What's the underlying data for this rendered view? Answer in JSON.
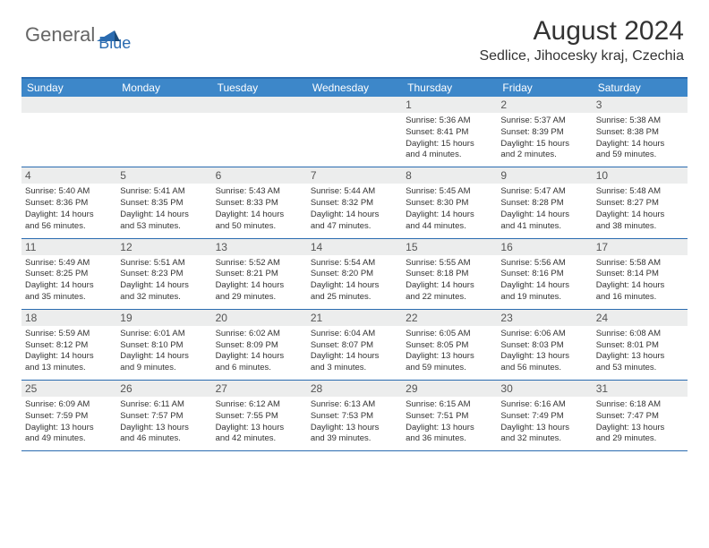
{
  "logo": {
    "part1": "General",
    "part2": "Blue"
  },
  "title": "August 2024",
  "location": "Sedlice, Jihocesky kraj, Czechia",
  "colors": {
    "header_bar": "#3d87c9",
    "border": "#2a6bb0",
    "daynum_bg": "#eceded",
    "text": "#333333",
    "logo_gray": "#666666",
    "logo_blue": "#2a6bb0",
    "background": "#ffffff"
  },
  "weekdays": [
    "Sunday",
    "Monday",
    "Tuesday",
    "Wednesday",
    "Thursday",
    "Friday",
    "Saturday"
  ],
  "weeks": [
    [
      null,
      null,
      null,
      null,
      {
        "n": "1",
        "sr": "Sunrise: 5:36 AM",
        "ss": "Sunset: 8:41 PM",
        "d1": "Daylight: 15 hours",
        "d2": "and 4 minutes."
      },
      {
        "n": "2",
        "sr": "Sunrise: 5:37 AM",
        "ss": "Sunset: 8:39 PM",
        "d1": "Daylight: 15 hours",
        "d2": "and 2 minutes."
      },
      {
        "n": "3",
        "sr": "Sunrise: 5:38 AM",
        "ss": "Sunset: 8:38 PM",
        "d1": "Daylight: 14 hours",
        "d2": "and 59 minutes."
      }
    ],
    [
      {
        "n": "4",
        "sr": "Sunrise: 5:40 AM",
        "ss": "Sunset: 8:36 PM",
        "d1": "Daylight: 14 hours",
        "d2": "and 56 minutes."
      },
      {
        "n": "5",
        "sr": "Sunrise: 5:41 AM",
        "ss": "Sunset: 8:35 PM",
        "d1": "Daylight: 14 hours",
        "d2": "and 53 minutes."
      },
      {
        "n": "6",
        "sr": "Sunrise: 5:43 AM",
        "ss": "Sunset: 8:33 PM",
        "d1": "Daylight: 14 hours",
        "d2": "and 50 minutes."
      },
      {
        "n": "7",
        "sr": "Sunrise: 5:44 AM",
        "ss": "Sunset: 8:32 PM",
        "d1": "Daylight: 14 hours",
        "d2": "and 47 minutes."
      },
      {
        "n": "8",
        "sr": "Sunrise: 5:45 AM",
        "ss": "Sunset: 8:30 PM",
        "d1": "Daylight: 14 hours",
        "d2": "and 44 minutes."
      },
      {
        "n": "9",
        "sr": "Sunrise: 5:47 AM",
        "ss": "Sunset: 8:28 PM",
        "d1": "Daylight: 14 hours",
        "d2": "and 41 minutes."
      },
      {
        "n": "10",
        "sr": "Sunrise: 5:48 AM",
        "ss": "Sunset: 8:27 PM",
        "d1": "Daylight: 14 hours",
        "d2": "and 38 minutes."
      }
    ],
    [
      {
        "n": "11",
        "sr": "Sunrise: 5:49 AM",
        "ss": "Sunset: 8:25 PM",
        "d1": "Daylight: 14 hours",
        "d2": "and 35 minutes."
      },
      {
        "n": "12",
        "sr": "Sunrise: 5:51 AM",
        "ss": "Sunset: 8:23 PM",
        "d1": "Daylight: 14 hours",
        "d2": "and 32 minutes."
      },
      {
        "n": "13",
        "sr": "Sunrise: 5:52 AM",
        "ss": "Sunset: 8:21 PM",
        "d1": "Daylight: 14 hours",
        "d2": "and 29 minutes."
      },
      {
        "n": "14",
        "sr": "Sunrise: 5:54 AM",
        "ss": "Sunset: 8:20 PM",
        "d1": "Daylight: 14 hours",
        "d2": "and 25 minutes."
      },
      {
        "n": "15",
        "sr": "Sunrise: 5:55 AM",
        "ss": "Sunset: 8:18 PM",
        "d1": "Daylight: 14 hours",
        "d2": "and 22 minutes."
      },
      {
        "n": "16",
        "sr": "Sunrise: 5:56 AM",
        "ss": "Sunset: 8:16 PM",
        "d1": "Daylight: 14 hours",
        "d2": "and 19 minutes."
      },
      {
        "n": "17",
        "sr": "Sunrise: 5:58 AM",
        "ss": "Sunset: 8:14 PM",
        "d1": "Daylight: 14 hours",
        "d2": "and 16 minutes."
      }
    ],
    [
      {
        "n": "18",
        "sr": "Sunrise: 5:59 AM",
        "ss": "Sunset: 8:12 PM",
        "d1": "Daylight: 14 hours",
        "d2": "and 13 minutes."
      },
      {
        "n": "19",
        "sr": "Sunrise: 6:01 AM",
        "ss": "Sunset: 8:10 PM",
        "d1": "Daylight: 14 hours",
        "d2": "and 9 minutes."
      },
      {
        "n": "20",
        "sr": "Sunrise: 6:02 AM",
        "ss": "Sunset: 8:09 PM",
        "d1": "Daylight: 14 hours",
        "d2": "and 6 minutes."
      },
      {
        "n": "21",
        "sr": "Sunrise: 6:04 AM",
        "ss": "Sunset: 8:07 PM",
        "d1": "Daylight: 14 hours",
        "d2": "and 3 minutes."
      },
      {
        "n": "22",
        "sr": "Sunrise: 6:05 AM",
        "ss": "Sunset: 8:05 PM",
        "d1": "Daylight: 13 hours",
        "d2": "and 59 minutes."
      },
      {
        "n": "23",
        "sr": "Sunrise: 6:06 AM",
        "ss": "Sunset: 8:03 PM",
        "d1": "Daylight: 13 hours",
        "d2": "and 56 minutes."
      },
      {
        "n": "24",
        "sr": "Sunrise: 6:08 AM",
        "ss": "Sunset: 8:01 PM",
        "d1": "Daylight: 13 hours",
        "d2": "and 53 minutes."
      }
    ],
    [
      {
        "n": "25",
        "sr": "Sunrise: 6:09 AM",
        "ss": "Sunset: 7:59 PM",
        "d1": "Daylight: 13 hours",
        "d2": "and 49 minutes."
      },
      {
        "n": "26",
        "sr": "Sunrise: 6:11 AM",
        "ss": "Sunset: 7:57 PM",
        "d1": "Daylight: 13 hours",
        "d2": "and 46 minutes."
      },
      {
        "n": "27",
        "sr": "Sunrise: 6:12 AM",
        "ss": "Sunset: 7:55 PM",
        "d1": "Daylight: 13 hours",
        "d2": "and 42 minutes."
      },
      {
        "n": "28",
        "sr": "Sunrise: 6:13 AM",
        "ss": "Sunset: 7:53 PM",
        "d1": "Daylight: 13 hours",
        "d2": "and 39 minutes."
      },
      {
        "n": "29",
        "sr": "Sunrise: 6:15 AM",
        "ss": "Sunset: 7:51 PM",
        "d1": "Daylight: 13 hours",
        "d2": "and 36 minutes."
      },
      {
        "n": "30",
        "sr": "Sunrise: 6:16 AM",
        "ss": "Sunset: 7:49 PM",
        "d1": "Daylight: 13 hours",
        "d2": "and 32 minutes."
      },
      {
        "n": "31",
        "sr": "Sunrise: 6:18 AM",
        "ss": "Sunset: 7:47 PM",
        "d1": "Daylight: 13 hours",
        "d2": "and 29 minutes."
      }
    ]
  ]
}
